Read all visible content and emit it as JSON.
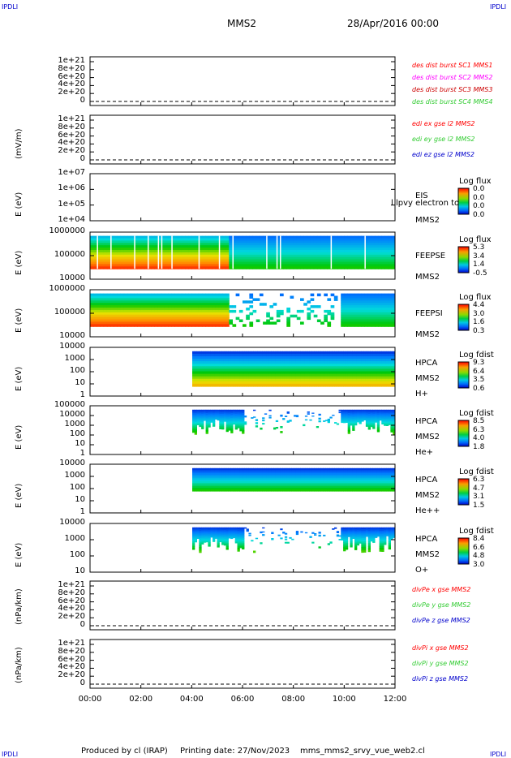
{
  "header": {
    "corner_tl": "IPDLI",
    "corner_tr": "IPDLI",
    "corner_bl": "IPDLI",
    "corner_br": "IPDLI",
    "spacecraft": "MMS2",
    "datetime": "28/Apr/2016 00:00"
  },
  "footer": {
    "produced_by": "Produced by cl (IRAP)",
    "printing_date": "Printing date: 27/Nov/2023",
    "script": "mms_mms2_srvy_vue_web2.cl"
  },
  "colors": {
    "red": "#ff0000",
    "magenta": "#ff00ff",
    "dark_red": "#cc0000",
    "green": "#33cc33",
    "blue": "#0000cc"
  },
  "chart_data": [
    {
      "type": "line",
      "id": "des_dist",
      "y_ticks": [
        "1e+21",
        "8e+20",
        "6e+20",
        "4e+20",
        "2e+20",
        "0"
      ],
      "legend": [
        "des dist burst SC1 MMS1",
        "des dist burst SC2 MMS2",
        "des dist burst SC3 MMS3",
        "des dist burst SC4 MMS4"
      ],
      "series": []
    },
    {
      "type": "line",
      "id": "edi",
      "ylabel": "(mV/m)",
      "y_ticks": [
        "1e+21",
        "8e+20",
        "6e+20",
        "4e+20",
        "2e+20",
        "0"
      ],
      "legend": [
        "edi ex gse l2 MMS2",
        "edi ey gse l2 MMS2",
        "edi ez gse l2 MMS2"
      ],
      "series": []
    },
    {
      "type": "heatmap",
      "id": "eis",
      "ylabel": "E (eV)",
      "y_ticks": [
        "1e+07",
        "1e+06",
        "1e+05",
        "1e+04"
      ],
      "side_labels": [
        "EIS",
        "MMS2"
      ],
      "overlay_text": "l lpvy electron to",
      "colorbar_title": "Log flux",
      "colorbar_ticks": [
        "0.0",
        "0.0",
        "0.0",
        "0.0"
      ]
    },
    {
      "type": "heatmap",
      "id": "feepse",
      "ylabel": "E (eV)",
      "y_ticks": [
        "1000000",
        "100000",
        "10000"
      ],
      "side_labels": [
        "FEEPSE",
        "MMS2"
      ],
      "colorbar_title": "Log flux",
      "colorbar_ticks": [
        "5.3",
        "3.4",
        "1.4",
        "-0.5"
      ]
    },
    {
      "type": "heatmap",
      "id": "feepsi",
      "ylabel": "E (eV)",
      "y_ticks": [
        "1000000",
        "100000",
        "10000"
      ],
      "side_labels": [
        "FEEPSI",
        "MMS2"
      ],
      "colorbar_title": "Log flux",
      "colorbar_ticks": [
        "4.4",
        "3.0",
        "1.6",
        "0.3"
      ]
    },
    {
      "type": "heatmap",
      "id": "hpca_h",
      "ylabel": "E (eV)",
      "y_ticks": [
        "10000",
        "1000",
        "100",
        "10",
        "1"
      ],
      "side_labels": [
        "HPCA",
        "MMS2",
        "H+"
      ],
      "colorbar_title": "Log fdist",
      "colorbar_ticks": [
        "9.3",
        "6.4",
        "3.5",
        "0.6"
      ]
    },
    {
      "type": "heatmap",
      "id": "hpca_he",
      "ylabel": "E (eV)",
      "y_ticks": [
        "100000",
        "10000",
        "1000",
        "100",
        "10",
        "1"
      ],
      "side_labels": [
        "HPCA",
        "MMS2",
        "He+"
      ],
      "colorbar_title": "Log fdist",
      "colorbar_ticks": [
        "8.5",
        "6.3",
        "4.0",
        "1.8"
      ]
    },
    {
      "type": "heatmap",
      "id": "hpca_hepp",
      "ylabel": "E (eV)",
      "y_ticks": [
        "10000",
        "1000",
        "100",
        "10",
        "1"
      ],
      "side_labels": [
        "HPCA",
        "MMS2",
        "He++"
      ],
      "colorbar_title": "Log fdist",
      "colorbar_ticks": [
        "6.3",
        "4.7",
        "3.1",
        "1.5"
      ]
    },
    {
      "type": "heatmap",
      "id": "hpca_o",
      "ylabel": "E (eV)",
      "y_ticks": [
        "10000",
        "1000",
        "100",
        "10"
      ],
      "side_labels": [
        "HPCA",
        "MMS2",
        "O+"
      ],
      "colorbar_title": "Log fdist",
      "colorbar_ticks": [
        "8.4",
        "6.6",
        "4.8",
        "3.0"
      ]
    },
    {
      "type": "line",
      "id": "divpe",
      "ylabel": "(nPa/km)",
      "y_ticks": [
        "1e+21",
        "8e+20",
        "6e+20",
        "4e+20",
        "2e+20",
        "0"
      ],
      "legend": [
        "divPe x gse MMS2",
        "divPe y gse MMS2",
        "divPe z gse MMS2"
      ],
      "series": []
    },
    {
      "type": "line",
      "id": "divpi",
      "ylabel": "(nPa/km)",
      "y_ticks": [
        "1e+21",
        "8e+20",
        "6e+20",
        "4e+20",
        "2e+20",
        "0"
      ],
      "legend": [
        "divPi x gse MMS2",
        "divPi y gse MMS2",
        "divPi z gse MMS2"
      ],
      "series": []
    }
  ],
  "x_axis": {
    "ticks": [
      "00:00",
      "02:00",
      "04:00",
      "06:00",
      "08:00",
      "10:00",
      "12:00"
    ],
    "xlim": [
      "00:00",
      "12:00"
    ]
  }
}
